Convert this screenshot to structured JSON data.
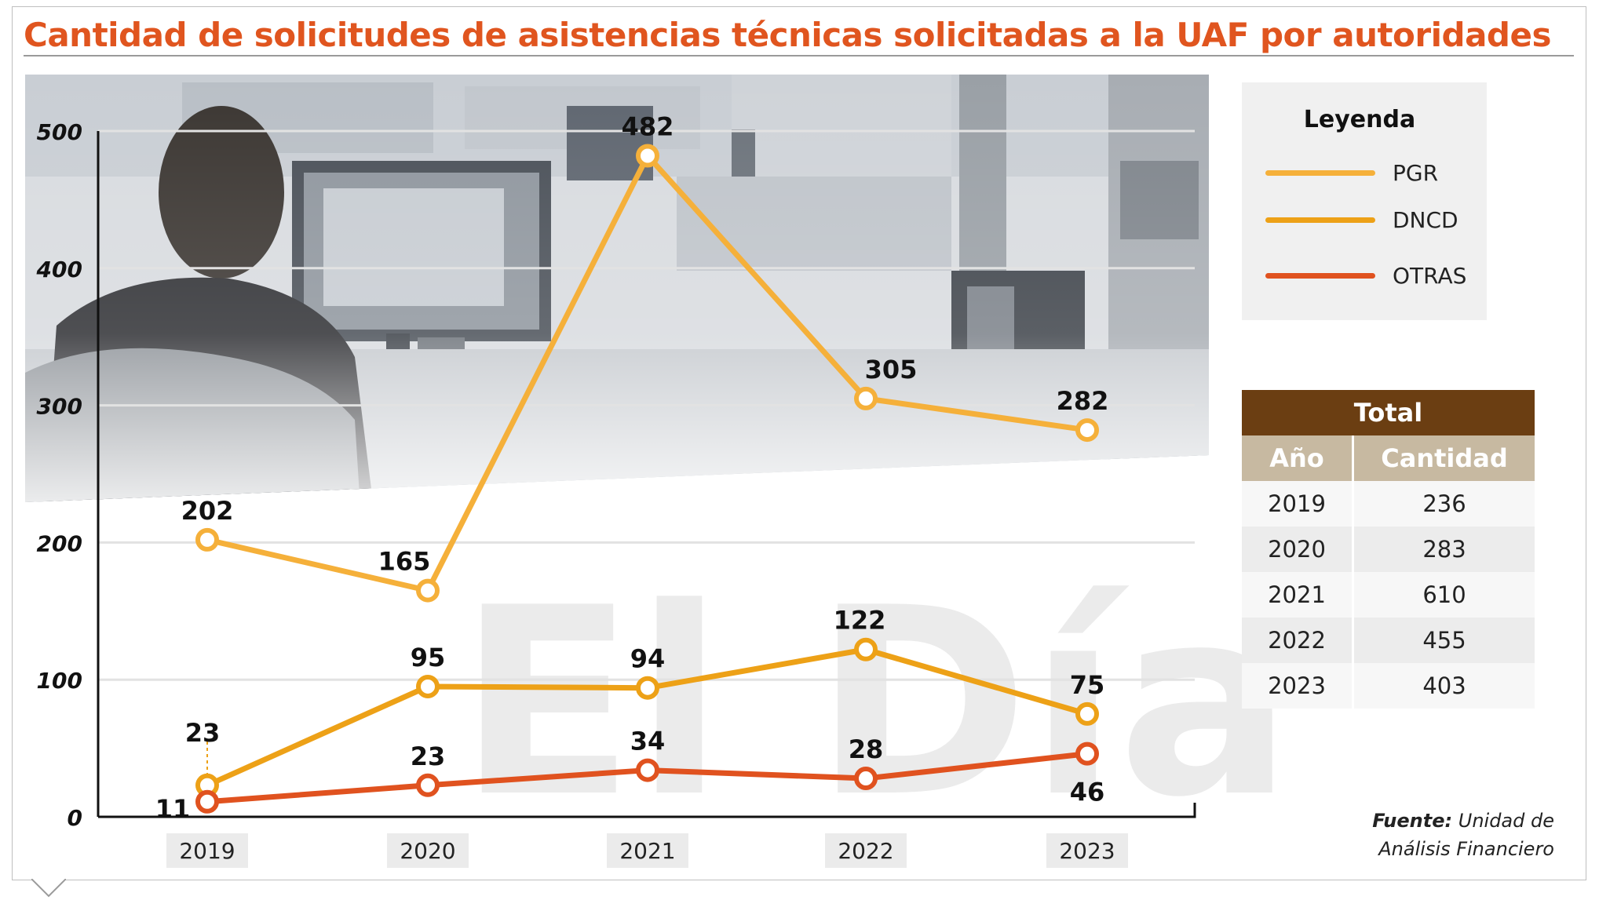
{
  "title": "Cantidad de solicitudes de asistencias técnicas solicitadas a la UAF por autoridades",
  "watermark": "El Día",
  "colors": {
    "title": "#e0551f",
    "pgr": "#f5b03a",
    "dncd": "#eda117",
    "otras": "#e0521f",
    "table_header": "#6b3e12",
    "table_subheader": "#c7b9a1"
  },
  "legend": {
    "title": "Leyenda",
    "items": [
      {
        "label": "PGR",
        "color": "#f5b03a"
      },
      {
        "label": "DNCD",
        "color": "#eda117"
      },
      {
        "label": "OTRAS",
        "color": "#e0521f"
      }
    ]
  },
  "table": {
    "title": "Total",
    "col_year": "Año",
    "col_amount": "Cantidad",
    "rows": [
      {
        "year": "2019",
        "amount": "236"
      },
      {
        "year": "2020",
        "amount": "283"
      },
      {
        "year": "2021",
        "amount": "610"
      },
      {
        "year": "2022",
        "amount": "455"
      },
      {
        "year": "2023",
        "amount": "403"
      }
    ]
  },
  "source": {
    "label": "Fuente:",
    "text_line1": "Unidad de",
    "text_line2": "Análisis Financiero"
  },
  "chart_data": {
    "type": "line",
    "x": [
      "2019",
      "2020",
      "2021",
      "2022",
      "2023"
    ],
    "ylim": [
      0,
      500
    ],
    "yticks": [
      0,
      100,
      200,
      300,
      400,
      500
    ],
    "grid": true,
    "series": [
      {
        "name": "PGR",
        "color": "#f5b03a",
        "values": [
          202,
          165,
          482,
          305,
          282
        ]
      },
      {
        "name": "DNCD",
        "color": "#eda117",
        "values": [
          23,
          95,
          94,
          122,
          75
        ]
      },
      {
        "name": "OTRAS",
        "color": "#e0521f",
        "values": [
          11,
          23,
          34,
          28,
          46
        ]
      }
    ]
  }
}
